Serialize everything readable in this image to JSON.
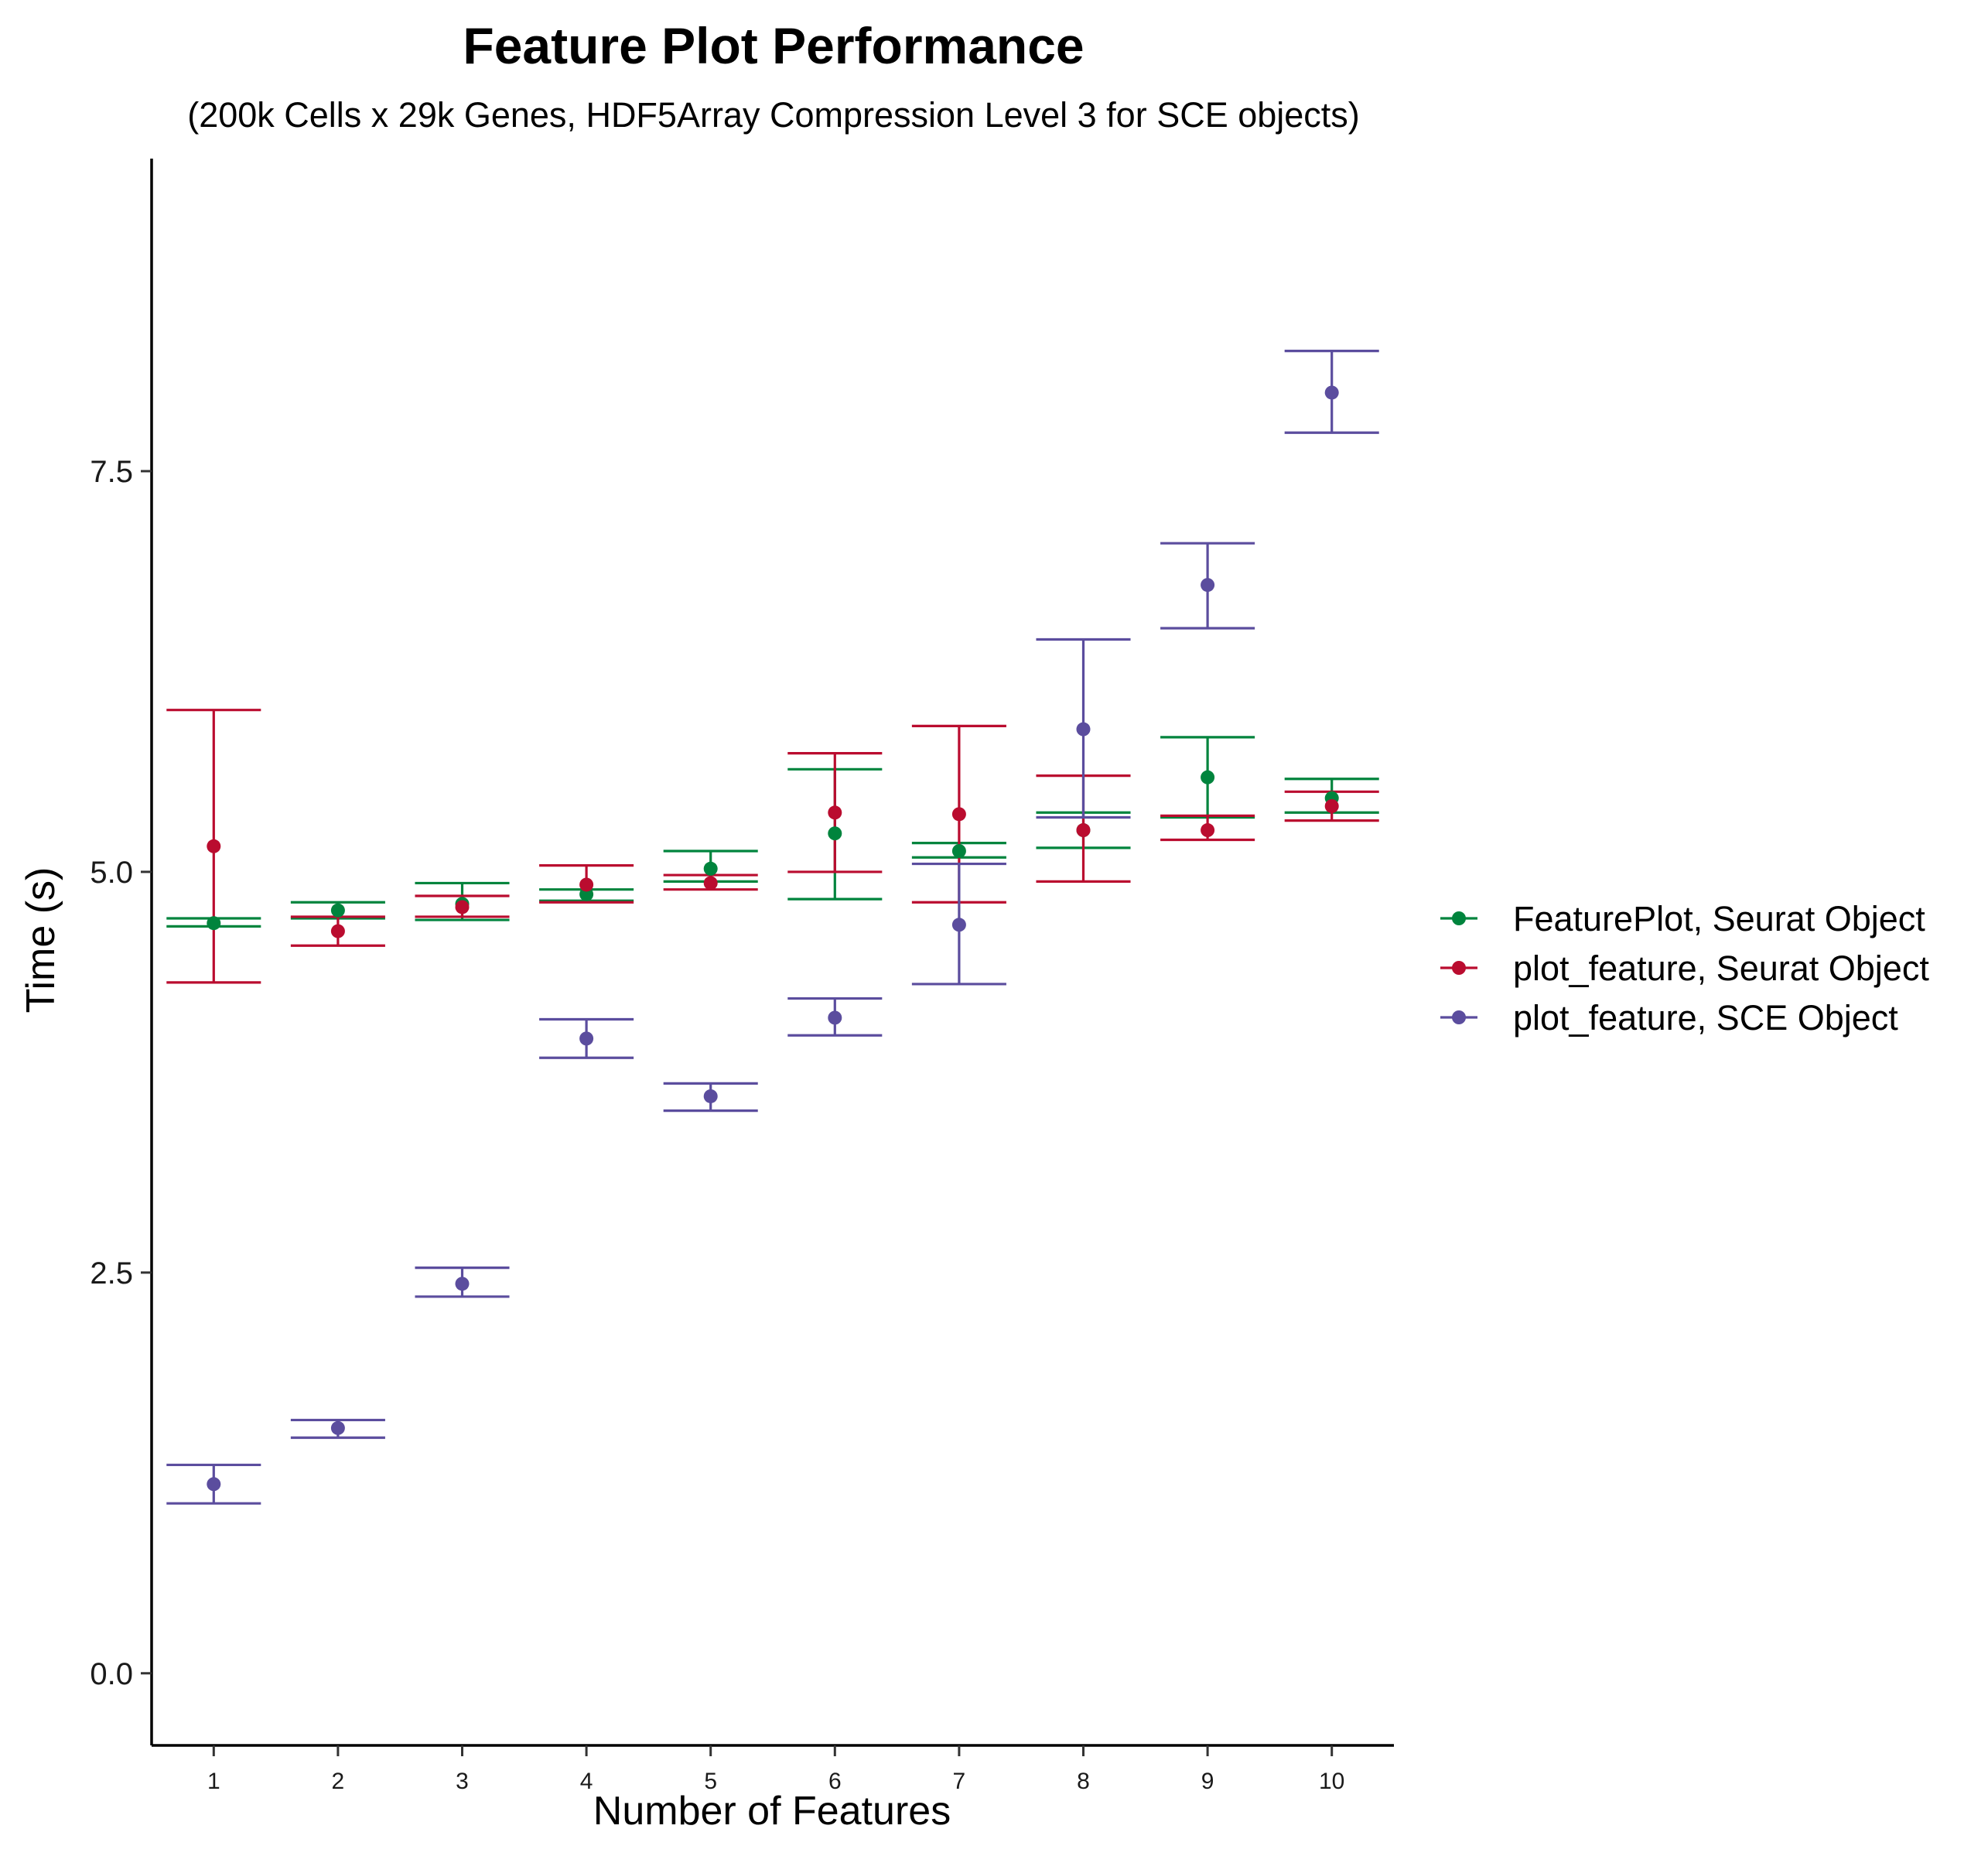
{
  "chart_data": {
    "type": "scatter",
    "title": "Feature Plot Performance",
    "subtitle": "(200k Cells x 29k Genes, HDF5Array Compression Level 3 for SCE objects)",
    "xlabel": "Number of Features",
    "ylabel": "Time (s)",
    "categories": [
      "1",
      "2",
      "3",
      "4",
      "5",
      "6",
      "7",
      "8",
      "9",
      "10"
    ],
    "ylim": [
      -0.45,
      9.45
    ],
    "yticks": [
      0.0,
      2.5,
      5.0,
      7.5
    ],
    "ytick_labels": [
      "0.0",
      "2.5",
      "5.0",
      "7.5"
    ],
    "grid": false,
    "legend_position": "right",
    "error_bars": true,
    "series": [
      {
        "name": "FeaturePlot, Seurat Object",
        "color": "#00843D",
        "values": [
          4.68,
          4.76,
          4.8,
          4.86,
          5.02,
          5.24,
          5.13,
          5.26,
          5.59,
          5.46
        ],
        "lower": [
          4.66,
          4.71,
          4.7,
          4.82,
          4.94,
          4.83,
          5.09,
          5.15,
          5.34,
          5.37
        ],
        "upper": [
          4.71,
          4.81,
          4.93,
          4.89,
          5.13,
          5.64,
          5.18,
          5.37,
          5.84,
          5.58
        ]
      },
      {
        "name": "plot_feature, Seurat Object",
        "color": "#BA0C2F",
        "values": [
          5.16,
          4.63,
          4.78,
          4.92,
          4.93,
          5.37,
          5.36,
          5.26,
          5.26,
          5.41
        ],
        "lower": [
          4.31,
          4.54,
          4.72,
          4.81,
          4.89,
          5.0,
          4.81,
          4.94,
          5.2,
          5.32
        ],
        "upper": [
          6.01,
          4.72,
          4.85,
          5.04,
          4.98,
          5.74,
          5.91,
          5.6,
          5.35,
          5.5
        ]
      },
      {
        "name": "plot_feature, SCE Object",
        "color": "#5B4D9E",
        "values": [
          1.18,
          1.53,
          2.43,
          3.96,
          3.6,
          4.09,
          4.67,
          5.89,
          6.79,
          7.99
        ],
        "lower": [
          1.06,
          1.47,
          2.35,
          3.84,
          3.51,
          3.98,
          4.3,
          5.34,
          6.52,
          7.74
        ],
        "upper": [
          1.3,
          1.58,
          2.53,
          4.08,
          3.68,
          4.21,
          5.05,
          6.45,
          7.05,
          8.25
        ]
      }
    ]
  }
}
